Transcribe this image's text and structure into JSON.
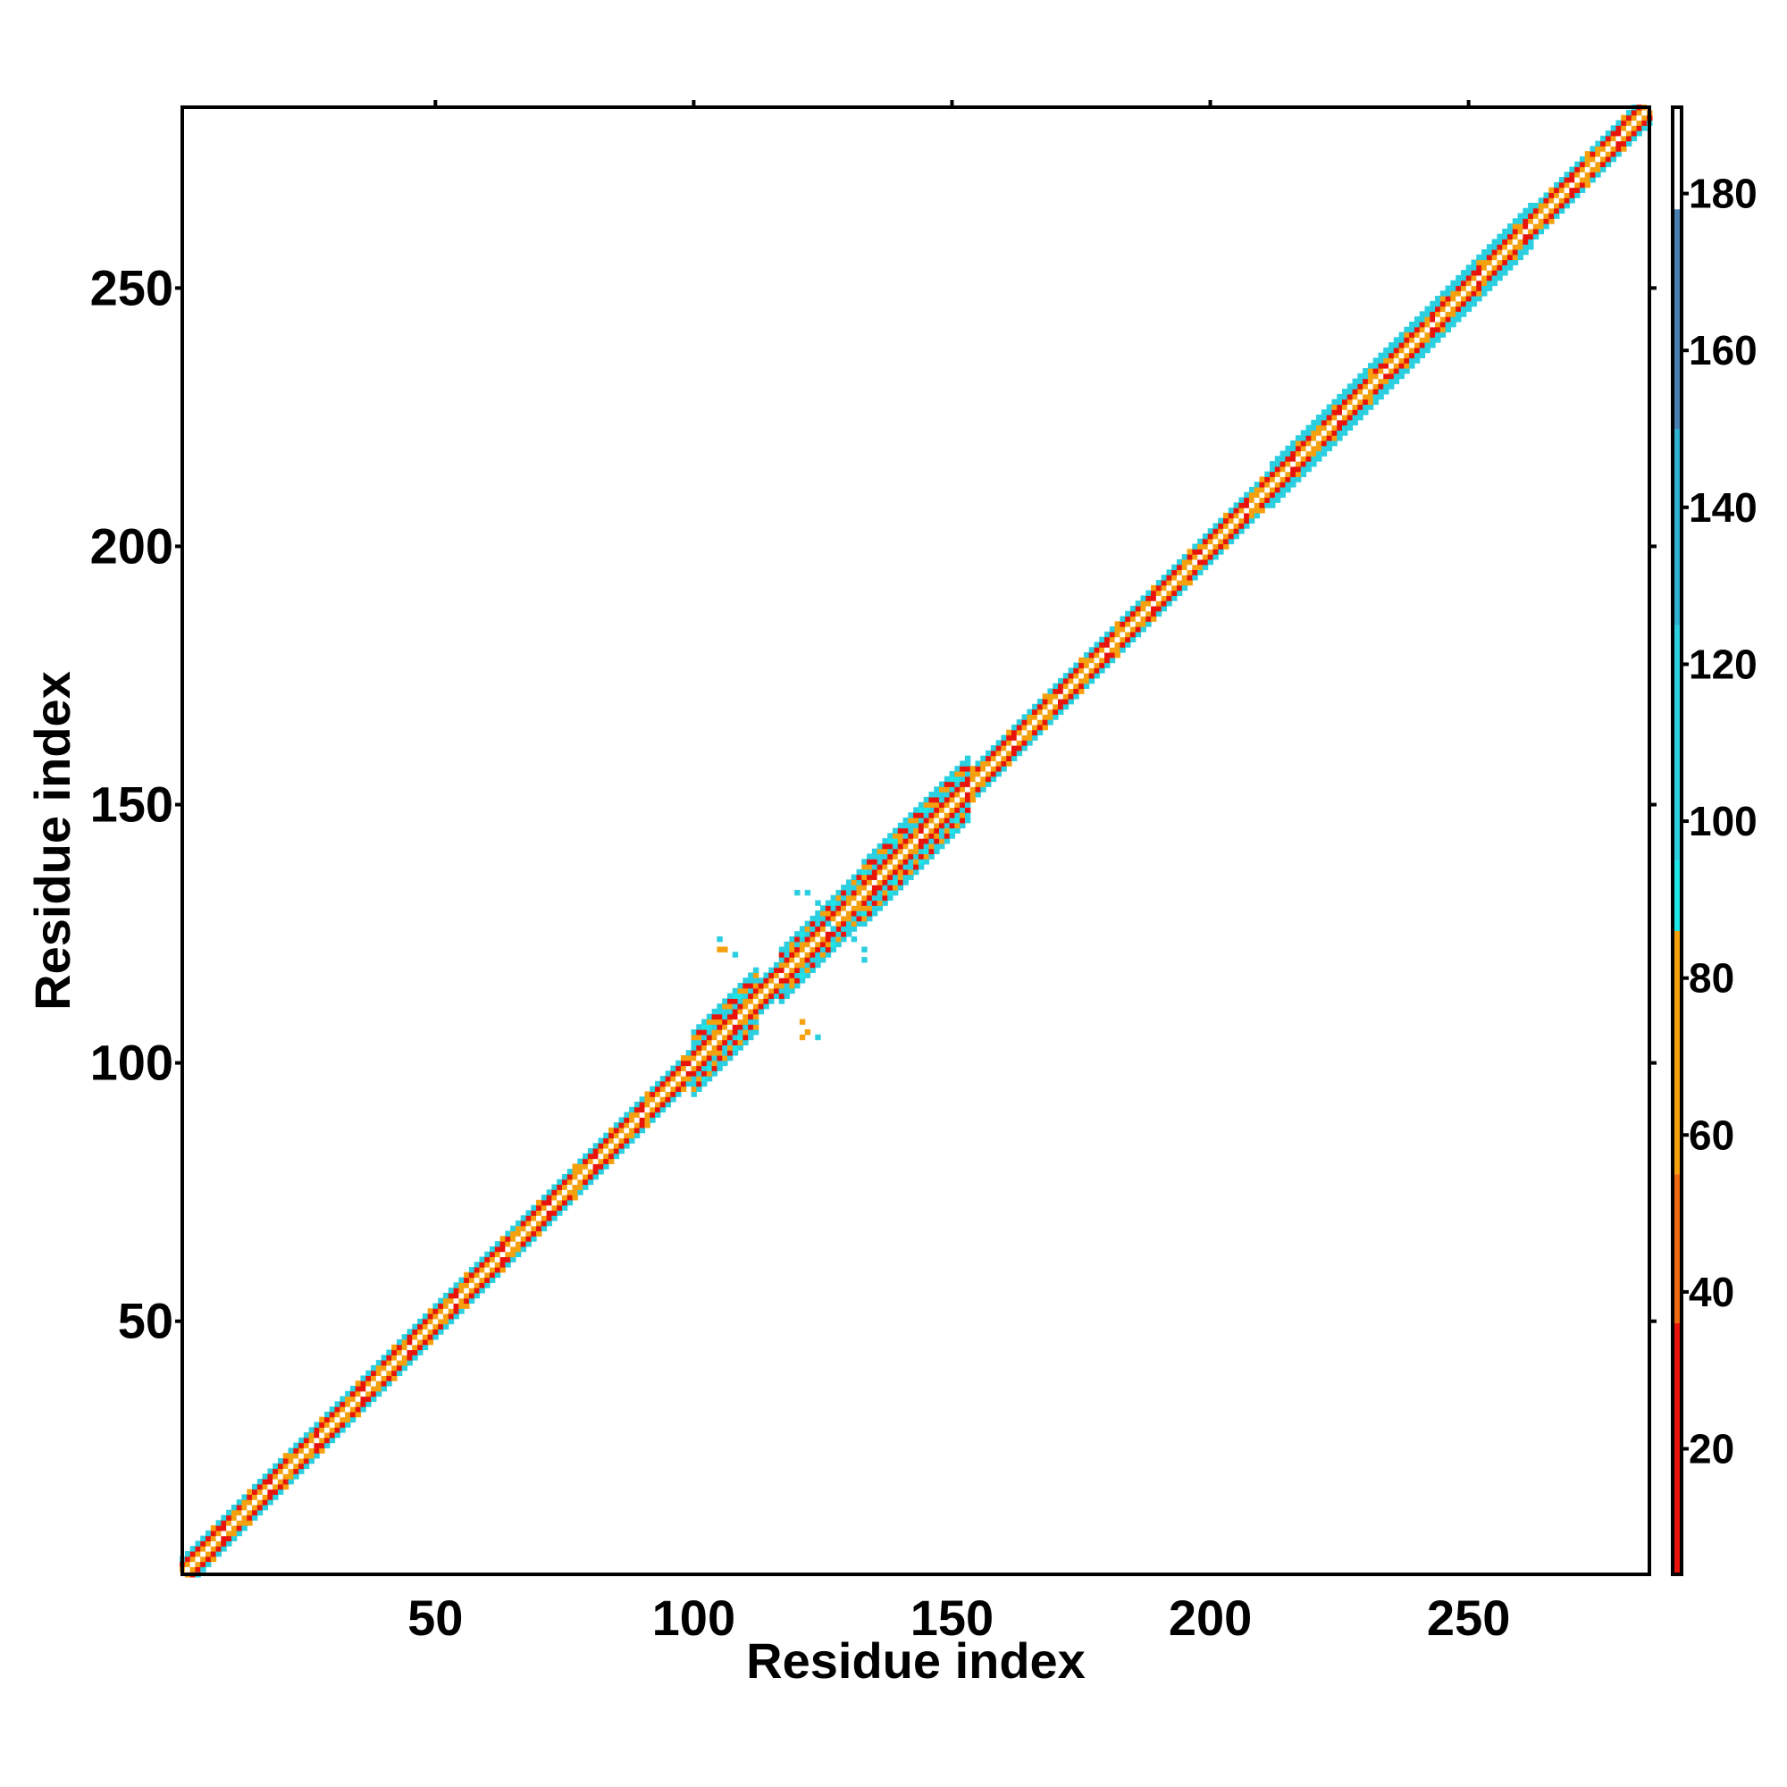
{
  "chart_data": {
    "type": "heatmap",
    "title": "",
    "xlabel": "Residue index",
    "ylabel": "Residue index",
    "xlim": [
      1,
      285
    ],
    "ylim": [
      1,
      285
    ],
    "x_ticks": [
      50,
      100,
      150,
      200,
      250
    ],
    "y_ticks": [
      50,
      100,
      150,
      200,
      250
    ],
    "grid": false,
    "colorbar": {
      "range": [
        4,
        191
      ],
      "ticks": [
        20,
        40,
        60,
        80,
        100,
        120,
        140,
        160,
        180
      ],
      "bands": [
        {
          "from": 4,
          "to": 36,
          "color": "#e8140c"
        },
        {
          "from": 36,
          "to": 55,
          "color": "#ee6a10"
        },
        {
          "from": 55,
          "to": 86,
          "color": "#f5a00e"
        },
        {
          "from": 86,
          "to": 95,
          "color": "#1ee6e6"
        },
        {
          "from": 95,
          "to": 125,
          "color": "#2bcfe0"
        },
        {
          "from": 125,
          "to": 150,
          "color": "#2fb0d0"
        },
        {
          "from": 150,
          "to": 178,
          "color": "#4a7fb2"
        },
        {
          "from": 178,
          "to": 191,
          "color": "#ffffff"
        }
      ]
    },
    "diagonal_band": {
      "residue_range": [
        1,
        285
      ],
      "offsets": [
        {
          "offset": 0,
          "value": 190
        },
        {
          "offset": 1,
          "value": 60
        },
        {
          "offset": 2,
          "value": 20
        },
        {
          "offset": 3,
          "value": 100
        }
      ]
    },
    "wide_band_segments": [
      {
        "start": 100,
        "end": 112,
        "half_width": 6
      },
      {
        "start": 117,
        "end": 132,
        "half_width": 5
      },
      {
        "start": 130,
        "end": 153,
        "half_width": 6
      },
      {
        "start": 212,
        "end": 262,
        "half_width": 4
      }
    ],
    "off_diagonal_contacts": [
      {
        "x": 105,
        "y": 122,
        "value": 65
      },
      {
        "x": 106,
        "y": 122,
        "value": 65
      },
      {
        "x": 105,
        "y": 124,
        "value": 100
      },
      {
        "x": 108,
        "y": 121,
        "value": 100
      },
      {
        "x": 121,
        "y": 105,
        "value": 65
      },
      {
        "x": 122,
        "y": 106,
        "value": 65
      },
      {
        "x": 124,
        "y": 105,
        "value": 100
      },
      {
        "x": 121,
        "y": 108,
        "value": 65
      },
      {
        "x": 120,
        "y": 133,
        "value": 100
      },
      {
        "x": 122,
        "y": 133,
        "value": 100
      },
      {
        "x": 124,
        "y": 131,
        "value": 100
      },
      {
        "x": 133,
        "y": 120,
        "value": 100
      },
      {
        "x": 133,
        "y": 122,
        "value": 100
      },
      {
        "x": 131,
        "y": 124,
        "value": 100
      },
      {
        "x": 127,
        "y": 126,
        "value": 100
      },
      {
        "x": 126,
        "y": 127,
        "value": 100
      }
    ]
  }
}
